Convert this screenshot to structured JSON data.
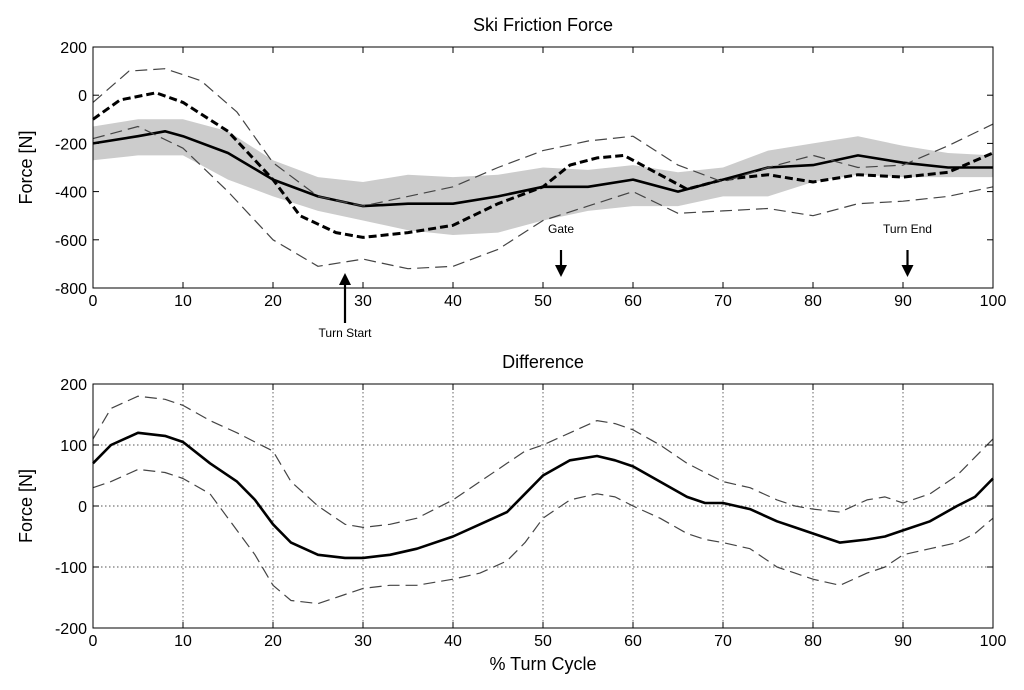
{
  "chart_data": [
    {
      "type": "line",
      "title": "Ski Friction Force",
      "xlabel": "",
      "ylabel": "Force [N]",
      "xlim": [
        0,
        100
      ],
      "ylim": [
        -800,
        200
      ],
      "xticks": [
        0,
        10,
        20,
        30,
        40,
        50,
        60,
        70,
        80,
        90,
        100
      ],
      "yticks": [
        -800,
        -600,
        -400,
        -200,
        0,
        200
      ],
      "grid": false,
      "band": {
        "color": "#cccccc",
        "x": [
          0,
          5,
          10,
          15,
          20,
          25,
          30,
          35,
          40,
          45,
          50,
          55,
          60,
          65,
          70,
          75,
          80,
          85,
          90,
          95,
          100
        ],
        "upper": [
          -130,
          -100,
          -100,
          -150,
          -270,
          -340,
          -360,
          -330,
          -340,
          -330,
          -300,
          -310,
          -290,
          -320,
          -300,
          -230,
          -200,
          -170,
          -210,
          -240,
          -250
        ],
        "lower": [
          -270,
          -250,
          -250,
          -350,
          -420,
          -480,
          -520,
          -560,
          -580,
          -570,
          -520,
          -480,
          -460,
          -460,
          -420,
          -420,
          -360,
          -330,
          -340,
          -340,
          -340
        ]
      },
      "series": [
        {
          "style": "solid-thick",
          "x": [
            0,
            5,
            8,
            10,
            15,
            20,
            25,
            30,
            35,
            40,
            45,
            50,
            55,
            60,
            65,
            70,
            75,
            80,
            85,
            90,
            95,
            100
          ],
          "values": [
            -200,
            -170,
            -150,
            -170,
            -240,
            -350,
            -420,
            -460,
            -450,
            -450,
            -420,
            -380,
            -380,
            -350,
            -400,
            -350,
            -300,
            -290,
            -250,
            -280,
            -300,
            -300
          ]
        },
        {
          "style": "dashed-thick",
          "x": [
            0,
            3,
            7,
            10,
            15,
            20,
            23,
            27,
            30,
            35,
            40,
            45,
            50,
            53,
            56,
            59,
            62,
            66,
            70,
            75,
            80,
            85,
            90,
            95,
            100
          ],
          "values": [
            -100,
            -20,
            10,
            -30,
            -150,
            -350,
            -500,
            -570,
            -590,
            -570,
            -540,
            -450,
            -380,
            -290,
            -260,
            -250,
            -310,
            -390,
            -350,
            -330,
            -360,
            -330,
            -340,
            -320,
            -240
          ]
        },
        {
          "style": "dashed-thin",
          "x": [
            0,
            4,
            8,
            12,
            16,
            20,
            25,
            30,
            35,
            40,
            45,
            50,
            55,
            60,
            65,
            70,
            75,
            80,
            85,
            90,
            95,
            100
          ],
          "values": [
            -30,
            100,
            110,
            60,
            -70,
            -280,
            -420,
            -460,
            -420,
            -380,
            -300,
            -230,
            -190,
            -170,
            -290,
            -360,
            -300,
            -250,
            -300,
            -290,
            -210,
            -120
          ]
        },
        {
          "style": "dashed-thin",
          "x": [
            0,
            5,
            10,
            15,
            20,
            25,
            30,
            35,
            40,
            45,
            50,
            55,
            60,
            65,
            70,
            75,
            80,
            85,
            90,
            95,
            100
          ],
          "values": [
            -180,
            -130,
            -220,
            -400,
            -600,
            -710,
            -680,
            -720,
            -710,
            -640,
            -520,
            -460,
            -400,
            -490,
            -480,
            -470,
            -500,
            -450,
            -440,
            -420,
            -380
          ]
        }
      ],
      "annotations": [
        {
          "text": "Turn Start",
          "x": 28,
          "direction": "up"
        },
        {
          "text": "Gate",
          "x": 52,
          "direction": "down"
        },
        {
          "text": "Turn End",
          "x": 90.5,
          "direction": "down"
        }
      ]
    },
    {
      "type": "line",
      "title": "Difference",
      "xlabel": "% Turn Cycle",
      "ylabel": "Force [N]",
      "xlim": [
        0,
        100
      ],
      "ylim": [
        -200,
        200
      ],
      "xticks": [
        0,
        10,
        20,
        30,
        40,
        50,
        60,
        70,
        80,
        90,
        100
      ],
      "yticks": [
        -200,
        -100,
        0,
        100,
        200
      ],
      "grid": true,
      "series": [
        {
          "style": "solid-thick",
          "x": [
            0,
            2,
            5,
            8,
            10,
            13,
            16,
            18,
            20,
            22,
            25,
            28,
            30,
            33,
            36,
            40,
            43,
            46,
            48,
            50,
            53,
            56,
            58,
            60,
            63,
            66,
            68,
            70,
            73,
            76,
            78,
            80,
            83,
            86,
            88,
            90,
            93,
            96,
            98,
            100
          ],
          "values": [
            70,
            100,
            120,
            115,
            105,
            70,
            40,
            10,
            -30,
            -60,
            -80,
            -85,
            -85,
            -80,
            -70,
            -50,
            -30,
            -10,
            20,
            50,
            75,
            82,
            75,
            65,
            40,
            15,
            5,
            5,
            -5,
            -25,
            -35,
            -45,
            -60,
            -55,
            -50,
            -40,
            -25,
            0,
            15,
            45
          ]
        },
        {
          "style": "dashed-thin",
          "x": [
            0,
            2,
            5,
            8,
            10,
            13,
            16,
            18,
            20,
            22,
            25,
            28,
            30,
            33,
            36,
            40,
            43,
            46,
            48,
            50,
            53,
            56,
            58,
            60,
            63,
            66,
            68,
            70,
            73,
            76,
            78,
            80,
            83,
            86,
            88,
            90,
            93,
            96,
            98,
            100
          ],
          "values": [
            110,
            160,
            180,
            175,
            165,
            140,
            120,
            105,
            90,
            40,
            0,
            -30,
            -35,
            -30,
            -20,
            10,
            40,
            70,
            90,
            100,
            120,
            140,
            135,
            125,
            100,
            70,
            55,
            40,
            30,
            10,
            0,
            -5,
            -10,
            10,
            15,
            5,
            20,
            50,
            80,
            110
          ]
        },
        {
          "style": "dashed-thin",
          "x": [
            0,
            2,
            5,
            8,
            10,
            13,
            16,
            18,
            20,
            22,
            25,
            28,
            30,
            33,
            36,
            40,
            43,
            46,
            48,
            50,
            53,
            56,
            58,
            60,
            63,
            66,
            68,
            70,
            73,
            76,
            78,
            80,
            83,
            86,
            88,
            90,
            93,
            96,
            98,
            100
          ],
          "values": [
            30,
            40,
            60,
            55,
            45,
            20,
            -40,
            -80,
            -130,
            -155,
            -160,
            -145,
            -135,
            -130,
            -130,
            -120,
            -110,
            -90,
            -60,
            -20,
            10,
            20,
            15,
            0,
            -20,
            -45,
            -55,
            -60,
            -70,
            -100,
            -110,
            -120,
            -130,
            -110,
            -100,
            -80,
            -70,
            -60,
            -45,
            -20
          ]
        }
      ]
    }
  ]
}
